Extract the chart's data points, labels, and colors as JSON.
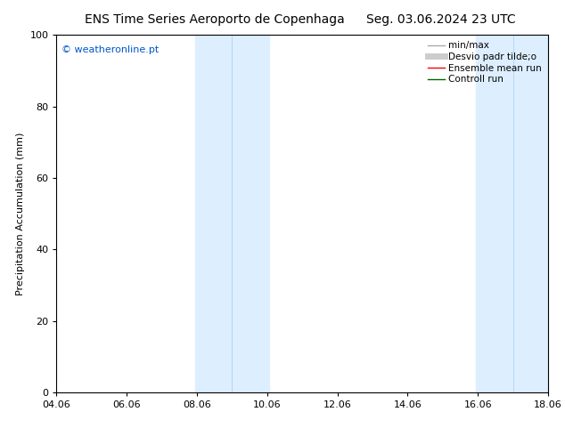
{
  "title_left": "ENS Time Series Aeroporto de Copenhaga",
  "title_right": "Seg. 03.06.2024 23 UTC",
  "ylabel": "Precipitation Accumulation (mm)",
  "watermark": "© weatheronline.pt",
  "watermark_color": "#0055cc",
  "xlim": [
    0,
    14
  ],
  "ylim": [
    0,
    100
  ],
  "yticks": [
    0,
    20,
    40,
    60,
    80,
    100
  ],
  "xtick_labels": [
    "04.06",
    "06.06",
    "08.06",
    "10.06",
    "12.06",
    "14.06",
    "16.06",
    "18.06"
  ],
  "xtick_positions": [
    0,
    2,
    4,
    6,
    8,
    10,
    12,
    14
  ],
  "shaded_bands": [
    {
      "x_start": 3.95,
      "x_end": 5.0,
      "color": "#ddeeff"
    },
    {
      "x_start": 5.0,
      "x_end": 6.05,
      "color": "#ddeeff"
    },
    {
      "x_start": 11.95,
      "x_end": 13.0,
      "color": "#ddeeff"
    },
    {
      "x_start": 13.0,
      "x_end": 14.05,
      "color": "#ddeeff"
    }
  ],
  "shade_divider_color": "#aaccee",
  "legend_entries": [
    {
      "label": "min/max",
      "color": "#aaaaaa",
      "lw": 1.0
    },
    {
      "label": "Desvio padr tilde;o",
      "color": "#cccccc",
      "lw": 5
    },
    {
      "label": "Ensemble mean run",
      "color": "#ff0000",
      "lw": 1.0
    },
    {
      "label": "Controll run",
      "color": "#006600",
      "lw": 1.0
    }
  ],
  "bg_color": "#ffffff",
  "grid_color": "#dddddd",
  "title_fontsize": 10,
  "tick_fontsize": 8,
  "ylabel_fontsize": 8,
  "legend_fontsize": 7.5
}
